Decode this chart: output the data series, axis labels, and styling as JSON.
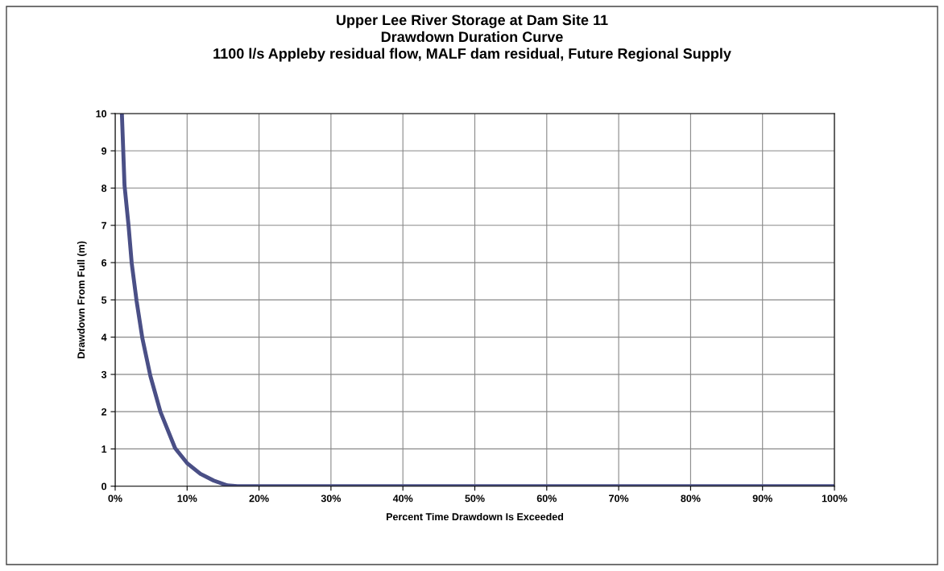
{
  "chart_data": {
    "type": "line",
    "title": "Upper Lee River Storage at Dam Site 11\nDrawdown Duration Curve\n1100 l/s Appleby residual flow, MALF dam residual, Future Regional Supply",
    "xlabel": "Percent Time Drawdown Is Exceeded",
    "ylabel": "Drawdown From Full (m)",
    "series": [
      {
        "color": "#4a4f86",
        "x": [
          0.93,
          1.3,
          1.86,
          2.3,
          2.97,
          3.78,
          4.89,
          6.3,
          8.33,
          10,
          11.85,
          13.7,
          15.6,
          17,
          20,
          40,
          60,
          80,
          100
        ],
        "values": [
          10,
          8.07,
          6.99,
          5.98,
          4.98,
          3.97,
          2.96,
          1.99,
          1.02,
          0.62,
          0.33,
          0.15,
          0.02,
          0,
          0,
          0,
          0,
          0,
          0
        ]
      }
    ],
    "xlim": [
      0,
      100
    ],
    "xticks": [
      {
        "value": 0,
        "label": "0%"
      },
      {
        "value": 10,
        "label": "10%"
      },
      {
        "value": 20,
        "label": "20%"
      },
      {
        "value": 30,
        "label": "30%"
      },
      {
        "value": 40,
        "label": "40%"
      },
      {
        "value": 50,
        "label": "50%"
      },
      {
        "value": 60,
        "label": "60%"
      },
      {
        "value": 70,
        "label": "70%"
      },
      {
        "value": 80,
        "label": "80%"
      },
      {
        "value": 90,
        "label": "90%"
      },
      {
        "value": 100,
        "label": "100%"
      }
    ],
    "ylim": [
      0,
      10
    ],
    "yticks": [
      0,
      1,
      2,
      3,
      4,
      5,
      6,
      7,
      8,
      9,
      10
    ],
    "grid": true,
    "legend": false,
    "marker": "none",
    "line_style": "solid"
  }
}
